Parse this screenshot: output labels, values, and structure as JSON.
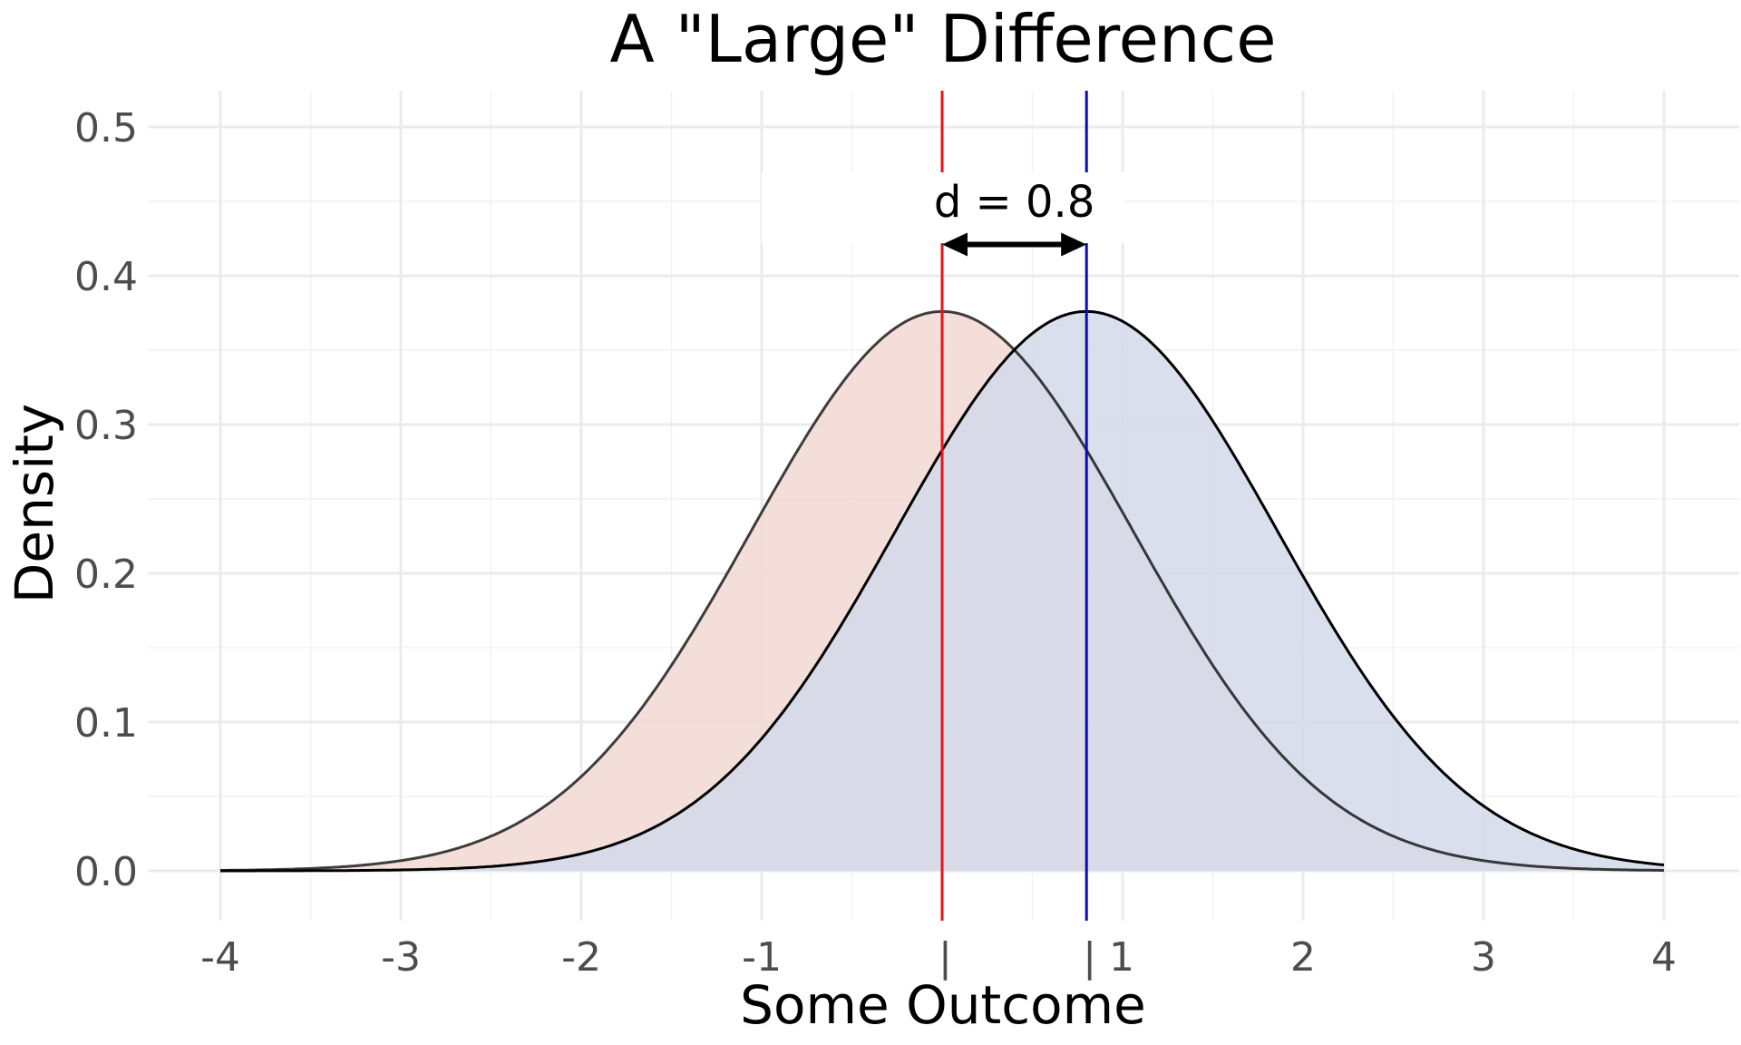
{
  "chart_data": {
    "type": "area",
    "title": "A \"Large\" Difference",
    "xlabel": "Some Outcome",
    "ylabel": "Density",
    "xlim": [
      -4,
      4
    ],
    "ylim": [
      0,
      0.5
    ],
    "x_ticks": [
      "-4",
      "-3",
      "-2",
      "-1",
      "|",
      "| 1",
      "2",
      "3",
      "4"
    ],
    "x_tick_values": [
      -4,
      -3,
      -2,
      -1,
      0,
      0.8,
      2,
      3,
      4
    ],
    "y_ticks": [
      "0.0",
      "0.1",
      "0.2",
      "0.3",
      "0.4",
      "0.5"
    ],
    "y_tick_values": [
      0,
      0.1,
      0.2,
      0.3,
      0.4,
      0.5
    ],
    "grid": true,
    "series": [
      {
        "mean": 0.0,
        "sd": 1.06,
        "peak": 0.376,
        "fill": "#f2d8d3",
        "line": "#000000"
      },
      {
        "mean": 0.8,
        "sd": 1.06,
        "peak": 0.376,
        "fill": "#d2d9ea",
        "line": "#000000"
      }
    ],
    "vlines": [
      {
        "x": 0.0,
        "color": "#e8141c"
      },
      {
        "x": 0.8,
        "color": "#0b0bb8"
      }
    ],
    "annotation": {
      "label": "d = 0.8",
      "from": 0.0,
      "to": 0.8,
      "y": 0.421,
      "label_y": 0.45
    }
  }
}
